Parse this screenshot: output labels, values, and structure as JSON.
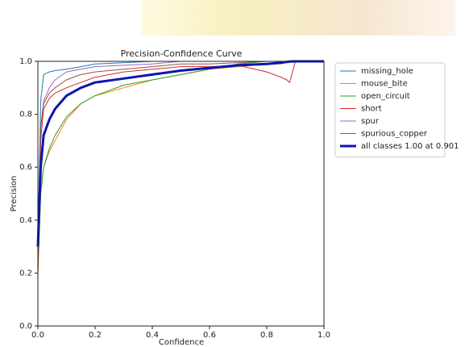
{
  "chart_data": {
    "type": "line",
    "title": "Precision-Confidence Curve",
    "x_label": "Confidence",
    "y_label": "Precision",
    "x": [
      0,
      0.01,
      0.02,
      0.04,
      0.06,
      0.1,
      0.15,
      0.2,
      0.3,
      0.4,
      0.5,
      0.6,
      0.7,
      0.8,
      0.85,
      0.87,
      0.88,
      0.9,
      1.0
    ],
    "series": [
      {
        "name": "missing_hole",
        "color": "#1f77b4",
        "values": [
          0.3,
          0.85,
          0.95,
          0.96,
          0.965,
          0.97,
          0.98,
          0.99,
          0.995,
          1,
          1,
          1,
          1,
          1,
          1,
          1,
          1,
          1,
          1
        ]
      },
      {
        "name": "mouse_bite",
        "color": "#ff7f0e",
        "values": [
          0.2,
          0.5,
          0.6,
          0.66,
          0.7,
          0.78,
          0.84,
          0.87,
          0.9,
          0.93,
          0.95,
          0.97,
          0.98,
          0.99,
          0.99,
          1,
          1,
          1,
          1
        ]
      },
      {
        "name": "open_circuit",
        "color": "#2ca02c",
        "values": [
          0.2,
          0.5,
          0.6,
          0.67,
          0.72,
          0.79,
          0.84,
          0.87,
          0.91,
          0.93,
          0.95,
          0.97,
          0.99,
          1,
          1,
          1,
          1,
          1,
          1
        ]
      },
      {
        "name": "short",
        "color": "#d62728",
        "values": [
          0.2,
          0.7,
          0.82,
          0.86,
          0.88,
          0.9,
          0.92,
          0.94,
          0.96,
          0.97,
          0.98,
          0.98,
          0.985,
          0.96,
          0.94,
          0.93,
          0.92,
          1,
          1
        ]
      },
      {
        "name": "spur",
        "color": "#9467bd",
        "values": [
          0.3,
          0.75,
          0.85,
          0.9,
          0.93,
          0.96,
          0.97,
          0.98,
          0.985,
          0.99,
          1,
          1,
          1,
          1,
          1,
          1,
          1,
          1,
          1
        ]
      },
      {
        "name": "spurious_copper",
        "color": "#8c564b",
        "values": [
          0.3,
          0.75,
          0.84,
          0.88,
          0.9,
          0.93,
          0.95,
          0.96,
          0.97,
          0.98,
          0.99,
          0.99,
          0.995,
          1,
          1,
          1,
          1,
          1,
          1
        ]
      },
      {
        "name": "all classes 1.00 at 0.901",
        "color": "#0b16b0",
        "width": 3,
        "values": [
          0.3,
          0.6,
          0.72,
          0.78,
          0.82,
          0.87,
          0.9,
          0.92,
          0.935,
          0.95,
          0.965,
          0.975,
          0.985,
          0.99,
          0.995,
          0.998,
          0.999,
          1,
          1
        ]
      }
    ],
    "xlim": [
      0,
      1
    ],
    "ylim": [
      0,
      1
    ],
    "xticks": [
      {
        "value": 0,
        "label": "0.0"
      },
      0.2,
      0.4,
      0.6,
      0.8,
      {
        "value": 1,
        "label": "1.0"
      }
    ],
    "yticks": [
      {
        "value": 0,
        "label": "0.0"
      },
      0.2,
      0.4,
      0.6,
      0.8,
      {
        "value": 1,
        "label": "1.0"
      }
    ],
    "legend": "outside-right"
  }
}
